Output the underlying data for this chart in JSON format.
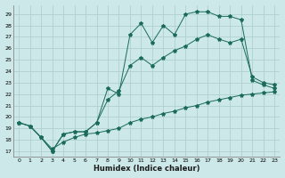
{
  "xlabel": "Humidex (Indice chaleur)",
  "bg_color": "#cce8e8",
  "line_color": "#1a6b5a",
  "grid_color": "#b0d0d0",
  "xlim": [
    -0.5,
    23.5
  ],
  "ylim": [
    16.5,
    29.8
  ],
  "yticks": [
    17,
    18,
    19,
    20,
    21,
    22,
    23,
    24,
    25,
    26,
    27,
    28,
    29
  ],
  "xticks": [
    0,
    1,
    2,
    3,
    4,
    5,
    6,
    7,
    8,
    9,
    10,
    11,
    12,
    13,
    14,
    15,
    16,
    17,
    18,
    19,
    20,
    21,
    22,
    23
  ],
  "line1_x": [
    0,
    1,
    2,
    3,
    4,
    5,
    6,
    7,
    8,
    9,
    10,
    11,
    12,
    13,
    14,
    15,
    16,
    17,
    18,
    19,
    20,
    21,
    22,
    23
  ],
  "line1_y": [
    19.5,
    19.2,
    18.2,
    17.2,
    17.8,
    18.2,
    18.5,
    18.6,
    18.8,
    19.0,
    19.5,
    19.8,
    20.0,
    20.3,
    20.5,
    20.8,
    21.0,
    21.3,
    21.5,
    21.7,
    21.9,
    22.0,
    22.1,
    22.2
  ],
  "line2_x": [
    0,
    1,
    2,
    3,
    4,
    5,
    6,
    7,
    8,
    9,
    10,
    11,
    12,
    13,
    14,
    15,
    16,
    17,
    18,
    19,
    20,
    21,
    22,
    23
  ],
  "line2_y": [
    19.5,
    19.2,
    18.2,
    17.0,
    18.5,
    18.7,
    18.7,
    19.5,
    21.5,
    22.3,
    24.5,
    25.2,
    24.5,
    25.2,
    25.8,
    26.2,
    26.8,
    27.2,
    26.8,
    26.5,
    26.8,
    23.5,
    23.0,
    22.8
  ],
  "line3_x": [
    0,
    1,
    2,
    3,
    4,
    5,
    6,
    7,
    8,
    9,
    10,
    11,
    12,
    13,
    14,
    15,
    16,
    17,
    18,
    19,
    20,
    21,
    22,
    23
  ],
  "line3_y": [
    19.5,
    19.2,
    18.2,
    17.0,
    18.5,
    18.7,
    18.7,
    19.5,
    22.5,
    22.0,
    27.2,
    28.2,
    26.5,
    28.0,
    27.2,
    29.0,
    29.2,
    29.2,
    28.8,
    28.8,
    28.5,
    23.2,
    22.8,
    22.5
  ]
}
